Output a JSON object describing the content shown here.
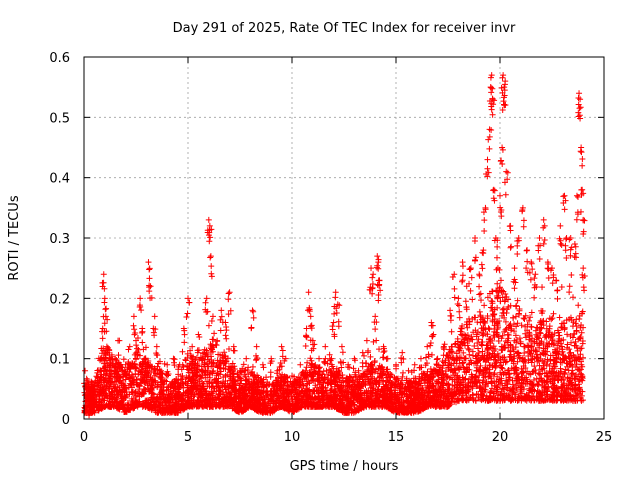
{
  "chart_data": {
    "type": "scatter",
    "title": "Day 291 of 2025, Rate Of TEC Index for receiver invr",
    "xlabel": "GPS time / hours",
    "ylabel": "ROTI / TECUs",
    "xlim": [
      0,
      25
    ],
    "ylim": [
      0,
      0.6
    ],
    "xticks": [
      0,
      5,
      10,
      15,
      20,
      25
    ],
    "xtick_labels": [
      "0",
      "5",
      "10",
      "15",
      "20",
      "25"
    ],
    "yticks": [
      0,
      0.1,
      0.2,
      0.3,
      0.4,
      0.5,
      0.6
    ],
    "ytick_labels": [
      "0",
      "0.1",
      "0.2",
      "0.3",
      "0.4",
      "0.5",
      "0.6"
    ],
    "grid": true,
    "marker": "plus",
    "color": "#ff0000",
    "series": [
      {
        "name": "ROTI",
        "points": [
          [
            0.05,
            0.08
          ],
          [
            0.1,
            0.05
          ],
          [
            0.2,
            0.06
          ],
          [
            0.3,
            0.04
          ],
          [
            0.5,
            0.05
          ],
          [
            0.8,
            0.1
          ],
          [
            0.9,
            0.15
          ],
          [
            0.95,
            0.24
          ],
          [
            1.0,
            0.2
          ],
          [
            1.05,
            0.17
          ],
          [
            1.1,
            0.12
          ],
          [
            1.3,
            0.08
          ],
          [
            1.5,
            0.1
          ],
          [
            1.7,
            0.13
          ],
          [
            2.0,
            0.09
          ],
          [
            2.2,
            0.12
          ],
          [
            2.4,
            0.17
          ],
          [
            2.5,
            0.13
          ],
          [
            2.7,
            0.2
          ],
          [
            2.8,
            0.15
          ],
          [
            2.9,
            0.1
          ],
          [
            3.1,
            0.26
          ],
          [
            3.2,
            0.22
          ],
          [
            3.4,
            0.17
          ],
          [
            3.5,
            0.12
          ],
          [
            3.7,
            0.08
          ],
          [
            4.0,
            0.09
          ],
          [
            4.3,
            0.1
          ],
          [
            4.6,
            0.09
          ],
          [
            4.8,
            0.15
          ],
          [
            5.0,
            0.2
          ],
          [
            5.2,
            0.12
          ],
          [
            5.5,
            0.14
          ],
          [
            5.7,
            0.1
          ],
          [
            5.9,
            0.2
          ],
          [
            6.0,
            0.33
          ],
          [
            6.05,
            0.32
          ],
          [
            6.1,
            0.27
          ],
          [
            6.2,
            0.17
          ],
          [
            6.4,
            0.13
          ],
          [
            6.6,
            0.18
          ],
          [
            6.8,
            0.16
          ],
          [
            7.0,
            0.21
          ],
          [
            7.2,
            0.12
          ],
          [
            7.5,
            0.08
          ],
          [
            7.8,
            0.1
          ],
          [
            8.1,
            0.18
          ],
          [
            8.3,
            0.12
          ],
          [
            8.6,
            0.09
          ],
          [
            9.0,
            0.1
          ],
          [
            9.3,
            0.08
          ],
          [
            9.5,
            0.12
          ],
          [
            9.7,
            0.1
          ],
          [
            10.1,
            0.07
          ],
          [
            10.4,
            0.09
          ],
          [
            10.7,
            0.15
          ],
          [
            10.8,
            0.21
          ],
          [
            10.9,
            0.17
          ],
          [
            11.0,
            0.13
          ],
          [
            11.3,
            0.1
          ],
          [
            11.6,
            0.12
          ],
          [
            11.9,
            0.1
          ],
          [
            12.0,
            0.16
          ],
          [
            12.1,
            0.21
          ],
          [
            12.2,
            0.19
          ],
          [
            12.4,
            0.12
          ],
          [
            12.7,
            0.09
          ],
          [
            13.0,
            0.1
          ],
          [
            13.2,
            0.08
          ],
          [
            13.4,
            0.11
          ],
          [
            13.6,
            0.13
          ],
          [
            13.8,
            0.25
          ],
          [
            13.9,
            0.24
          ],
          [
            14.0,
            0.17
          ],
          [
            14.1,
            0.27
          ],
          [
            14.15,
            0.26
          ],
          [
            14.2,
            0.23
          ],
          [
            14.4,
            0.12
          ],
          [
            14.6,
            0.1
          ],
          [
            15.0,
            0.09
          ],
          [
            15.3,
            0.11
          ],
          [
            15.6,
            0.08
          ],
          [
            15.9,
            0.09
          ],
          [
            16.2,
            0.1
          ],
          [
            16.5,
            0.12
          ],
          [
            16.7,
            0.16
          ],
          [
            16.8,
            0.14
          ],
          [
            17.0,
            0.1
          ],
          [
            17.3,
            0.12
          ],
          [
            17.6,
            0.18
          ],
          [
            17.8,
            0.24
          ],
          [
            18.0,
            0.2
          ],
          [
            18.2,
            0.26
          ],
          [
            18.4,
            0.22
          ],
          [
            18.6,
            0.25
          ],
          [
            18.8,
            0.3
          ],
          [
            19.0,
            0.24
          ],
          [
            19.2,
            0.28
          ],
          [
            19.3,
            0.35
          ],
          [
            19.4,
            0.43
          ],
          [
            19.5,
            0.48
          ],
          [
            19.55,
            0.55
          ],
          [
            19.6,
            0.57
          ],
          [
            19.65,
            0.53
          ],
          [
            19.7,
            0.38
          ],
          [
            19.8,
            0.3
          ],
          [
            19.9,
            0.25
          ],
          [
            20.0,
            0.37
          ],
          [
            20.1,
            0.45
          ],
          [
            20.15,
            0.57
          ],
          [
            20.2,
            0.55
          ],
          [
            20.25,
            0.56
          ],
          [
            20.3,
            0.41
          ],
          [
            20.5,
            0.32
          ],
          [
            20.7,
            0.25
          ],
          [
            20.9,
            0.3
          ],
          [
            21.1,
            0.35
          ],
          [
            21.3,
            0.28
          ],
          [
            21.5,
            0.26
          ],
          [
            21.7,
            0.24
          ],
          [
            21.9,
            0.3
          ],
          [
            22.1,
            0.33
          ],
          [
            22.3,
            0.26
          ],
          [
            22.5,
            0.25
          ],
          [
            22.7,
            0.23
          ],
          [
            22.9,
            0.32
          ],
          [
            23.1,
            0.37
          ],
          [
            23.2,
            0.3
          ],
          [
            23.4,
            0.3
          ],
          [
            23.6,
            0.29
          ],
          [
            23.7,
            0.37
          ],
          [
            23.8,
            0.54
          ],
          [
            23.85,
            0.53
          ],
          [
            23.9,
            0.45
          ],
          [
            23.95,
            0.38
          ],
          [
            24.0,
            0.33
          ],
          [
            24.0,
            0.25
          ]
        ]
      }
    ],
    "envelope": {
      "description": "approximate upper envelope of the dense point cloud (hours, TECUs)",
      "hours": [
        0,
        0.5,
        1,
        1.5,
        2,
        2.5,
        3,
        3.5,
        4,
        4.5,
        5,
        5.5,
        6,
        6.5,
        7,
        7.5,
        8,
        8.5,
        9,
        9.5,
        10,
        10.5,
        11,
        11.5,
        12,
        12.5,
        13,
        13.5,
        14,
        14.5,
        15,
        15.5,
        16,
        16.5,
        17,
        17.5,
        18,
        18.5,
        19,
        19.5,
        20,
        20.5,
        21,
        21.5,
        22,
        22.5,
        23,
        23.5,
        24
      ],
      "upper": [
        0.07,
        0.06,
        0.13,
        0.1,
        0.08,
        0.12,
        0.1,
        0.09,
        0.06,
        0.07,
        0.11,
        0.1,
        0.13,
        0.11,
        0.1,
        0.07,
        0.08,
        0.07,
        0.06,
        0.08,
        0.06,
        0.08,
        0.1,
        0.08,
        0.09,
        0.07,
        0.07,
        0.08,
        0.1,
        0.08,
        0.07,
        0.06,
        0.07,
        0.08,
        0.09,
        0.11,
        0.15,
        0.17,
        0.18,
        0.21,
        0.22,
        0.2,
        0.18,
        0.17,
        0.18,
        0.17,
        0.16,
        0.17,
        0.18
      ],
      "lower": [
        0.01,
        0.01,
        0.02,
        0.02,
        0.01,
        0.02,
        0.02,
        0.01,
        0.01,
        0.01,
        0.02,
        0.02,
        0.02,
        0.02,
        0.02,
        0.01,
        0.02,
        0.01,
        0.01,
        0.02,
        0.01,
        0.02,
        0.02,
        0.02,
        0.02,
        0.01,
        0.01,
        0.02,
        0.02,
        0.02,
        0.01,
        0.01,
        0.01,
        0.02,
        0.02,
        0.02,
        0.03,
        0.03,
        0.03,
        0.03,
        0.03,
        0.03,
        0.03,
        0.03,
        0.03,
        0.03,
        0.03,
        0.03,
        0.03
      ]
    }
  }
}
